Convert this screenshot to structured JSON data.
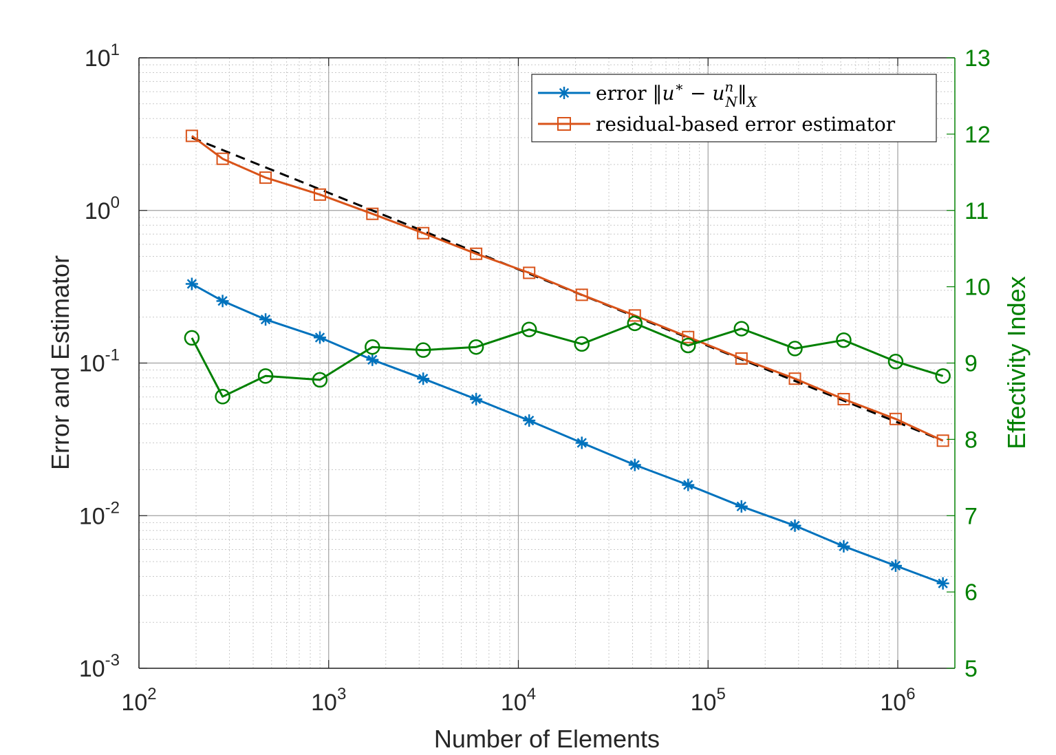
{
  "chart_data": {
    "type": "line",
    "xlabel": "Number of Elements",
    "ylabel_left": "Error and Estimator",
    "ylabel_right": "Effectivity Index",
    "x_scale": "log",
    "y_left_scale": "log",
    "y_right_scale": "linear",
    "xlim": [
      100,
      2000000
    ],
    "ylim_left": [
      0.001,
      10
    ],
    "ylim_right": [
      5,
      13
    ],
    "x_ticks": [
      {
        "value": 100,
        "base": "10",
        "exp": "2"
      },
      {
        "value": 1000,
        "base": "10",
        "exp": "3"
      },
      {
        "value": 10000,
        "base": "10",
        "exp": "4"
      },
      {
        "value": 100000,
        "base": "10",
        "exp": "5"
      },
      {
        "value": 1000000,
        "base": "10",
        "exp": "6"
      }
    ],
    "y_left_ticks": [
      {
        "value": 0.001,
        "base": "10",
        "exp": "-3"
      },
      {
        "value": 0.01,
        "base": "10",
        "exp": "-2"
      },
      {
        "value": 0.1,
        "base": "10",
        "exp": "-1"
      },
      {
        "value": 1,
        "base": "10",
        "exp": "0"
      },
      {
        "value": 10,
        "base": "10",
        "exp": "1"
      }
    ],
    "y_right_ticks": [
      {
        "value": 5,
        "label": "5"
      },
      {
        "value": 6,
        "label": "6"
      },
      {
        "value": 7,
        "label": "7"
      },
      {
        "value": 8,
        "label": "8"
      },
      {
        "value": 9,
        "label": "9"
      },
      {
        "value": 10,
        "label": "10"
      },
      {
        "value": 11,
        "label": "11"
      },
      {
        "value": 12,
        "label": "12"
      },
      {
        "value": 13,
        "label": "13"
      }
    ],
    "grid": true,
    "legend_position": "top-right",
    "x": [
      190,
      276,
      465,
      899,
      1700,
      3150,
      5990,
      11400,
      21600,
      41100,
      78500,
      150000,
      287000,
      519000,
      975000,
      1730000
    ],
    "series": [
      {
        "name": "error ‖u* − uₙᴺ‖ₓ",
        "legend_main": "error ",
        "axis": "left",
        "color": "#0072BD",
        "marker": "asterisk",
        "values": [
          0.33,
          0.255,
          0.193,
          0.147,
          0.105,
          0.079,
          0.058,
          0.042,
          0.03,
          0.0215,
          0.0159,
          0.0115,
          0.0086,
          0.0063,
          0.0047,
          0.0036
        ]
      },
      {
        "name": "residual-based error estimator",
        "axis": "left",
        "color": "#D95319",
        "marker": "square",
        "values": [
          3.08,
          2.18,
          1.64,
          1.27,
          0.95,
          0.71,
          0.52,
          0.39,
          0.28,
          0.205,
          0.148,
          0.107,
          0.079,
          0.058,
          0.043,
          0.031
        ]
      },
      {
        "name": "",
        "axis": "right",
        "color": "#008000",
        "marker": "circle",
        "values": [
          9.33,
          8.56,
          8.83,
          8.78,
          9.21,
          9.17,
          9.21,
          9.44,
          9.25,
          9.52,
          9.23,
          9.45,
          9.19,
          9.3,
          9.02,
          8.83
        ]
      }
    ],
    "reference_line": {
      "style": "dashed",
      "color": "#000000",
      "x": [
        190,
        1730000
      ],
      "y": [
        3.0,
        0.031
      ]
    }
  }
}
